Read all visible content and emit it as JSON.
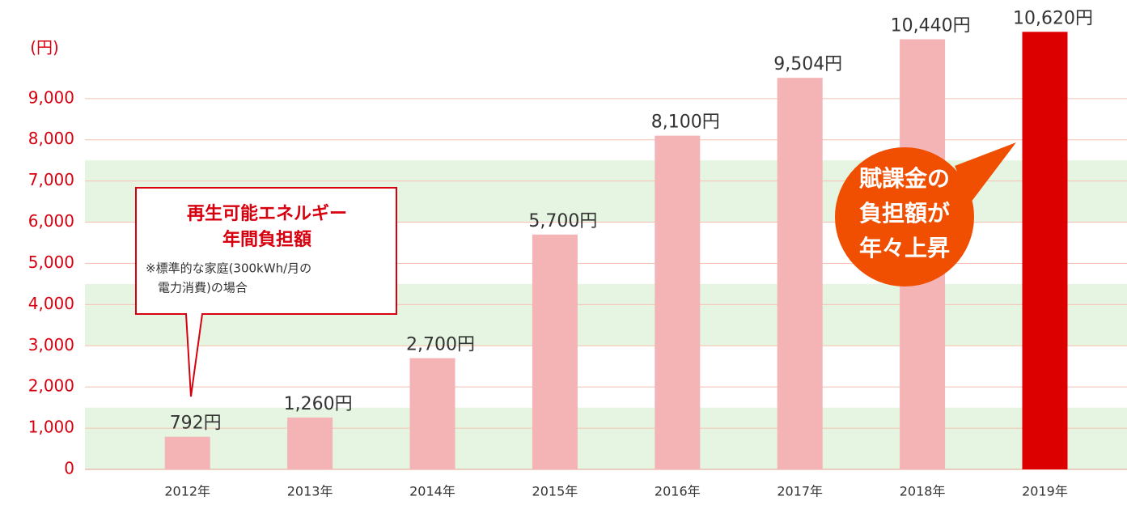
{
  "chart_data": {
    "type": "bar",
    "y_label": "(円)",
    "categories": [
      "2012年",
      "2013年",
      "2014年",
      "2015年",
      "2016年",
      "2017年",
      "2018年",
      "2019年"
    ],
    "values": [
      792,
      1260,
      2700,
      5700,
      8100,
      9504,
      10440,
      10620
    ],
    "value_labels": [
      "792円",
      "1,260円",
      "2,700円",
      "5,700円",
      "8,100円",
      "9,504円",
      "10,440円",
      "10,620円"
    ],
    "colors": [
      "#f4b3b5",
      "#f4b3b5",
      "#f4b3b5",
      "#f4b3b5",
      "#f4b3b5",
      "#f4b3b5",
      "#f4b3b5",
      "#dd0000"
    ],
    "ylim": [
      0,
      11000
    ],
    "yticks": [
      0,
      {
        "value": 1000,
        "label": "1,000"
      },
      {
        "value": 2000,
        "label": "2,000"
      },
      {
        "value": 3000,
        "label": "3,000"
      },
      {
        "value": 4000,
        "label": "4,000"
      },
      {
        "value": 5000,
        "label": "5,000"
      },
      {
        "value": 6000,
        "label": "6,000"
      },
      {
        "value": 7000,
        "label": "7,000"
      },
      {
        "value": 8000,
        "label": "8,000"
      },
      {
        "value": 9000,
        "label": "9,000"
      }
    ],
    "grid": true,
    "bands": [
      [
        0,
        1500
      ],
      [
        3000,
        4500
      ],
      [
        6000,
        7500
      ]
    ],
    "annotations": [
      {
        "title": [
          "再生可能エネルギー",
          "年間負担額"
        ],
        "note": [
          "※標準的な家庭(300kWh/月の",
          "電力消費)の場合"
        ]
      },
      {
        "lines": [
          "賦課金の",
          "負担額が",
          "年々上昇"
        ]
      }
    ]
  }
}
